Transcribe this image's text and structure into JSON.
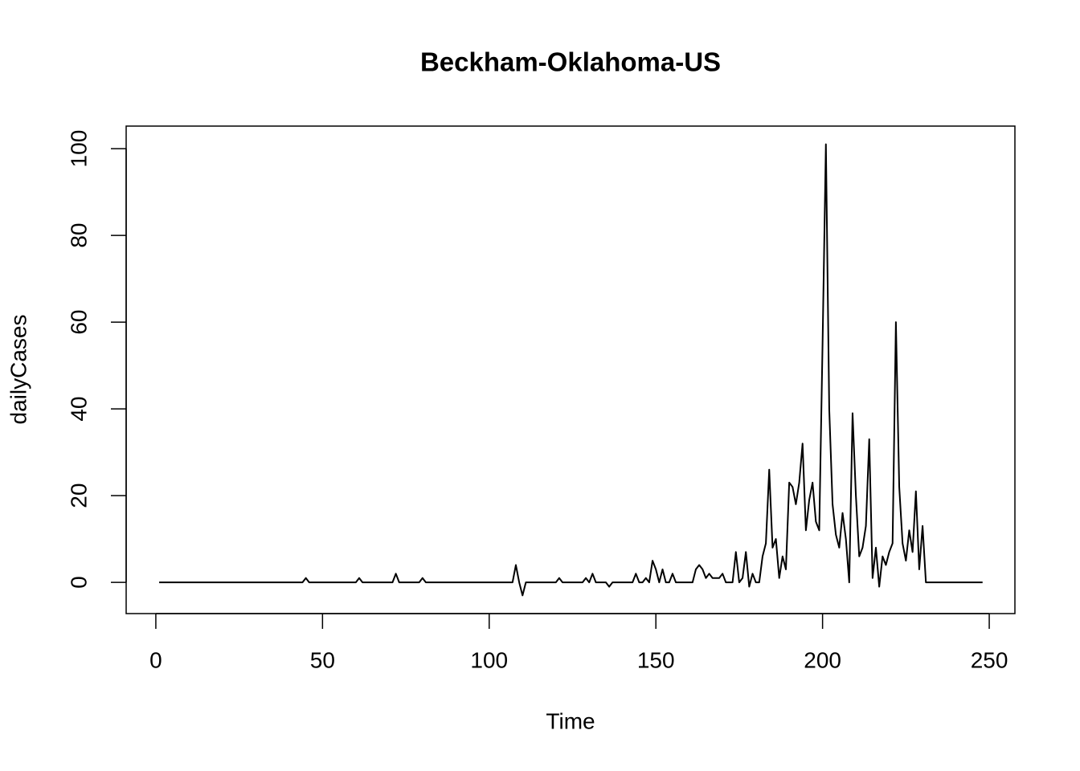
{
  "chart_data": {
    "type": "line",
    "title": "Beckham-Oklahoma-US",
    "x_label": "Time",
    "y_label": "dailyCases",
    "color": "#000000",
    "x": [
      1,
      2,
      3,
      4,
      5,
      6,
      7,
      8,
      9,
      10,
      11,
      12,
      13,
      14,
      15,
      16,
      17,
      18,
      19,
      20,
      21,
      22,
      23,
      24,
      25,
      26,
      27,
      28,
      29,
      30,
      31,
      32,
      33,
      34,
      35,
      36,
      37,
      38,
      39,
      40,
      41,
      42,
      43,
      44,
      45,
      46,
      47,
      48,
      49,
      50,
      51,
      52,
      53,
      54,
      55,
      56,
      57,
      58,
      59,
      60,
      61,
      62,
      63,
      64,
      65,
      66,
      67,
      68,
      69,
      70,
      71,
      72,
      73,
      74,
      75,
      76,
      77,
      78,
      79,
      80,
      81,
      82,
      83,
      84,
      85,
      86,
      87,
      88,
      89,
      90,
      91,
      92,
      93,
      94,
      95,
      96,
      97,
      98,
      99,
      100,
      101,
      102,
      103,
      104,
      105,
      106,
      107,
      108,
      109,
      110,
      111,
      112,
      113,
      114,
      115,
      116,
      117,
      118,
      119,
      120,
      121,
      122,
      123,
      124,
      125,
      126,
      127,
      128,
      129,
      130,
      131,
      132,
      133,
      134,
      135,
      136,
      137,
      138,
      139,
      140,
      141,
      142,
      143,
      144,
      145,
      146,
      147,
      148,
      149,
      150,
      151,
      152,
      153,
      154,
      155,
      156,
      157,
      158,
      159,
      160,
      161,
      162,
      163,
      164,
      165,
      166,
      167,
      168,
      169,
      170,
      171,
      172,
      173,
      174,
      175,
      176,
      177,
      178,
      179,
      180,
      181,
      182,
      183,
      184,
      185,
      186,
      187,
      188,
      189,
      190,
      191,
      192,
      193,
      194,
      195,
      196,
      197,
      198,
      199,
      200,
      201,
      202,
      203,
      204,
      205,
      206,
      207,
      208,
      209,
      210,
      211,
      212,
      213,
      214,
      215,
      216,
      217,
      218,
      219,
      220,
      221,
      222,
      223,
      224,
      225,
      226,
      227,
      228,
      229,
      230,
      231,
      232,
      233,
      234,
      235,
      236,
      237,
      238,
      239,
      240,
      241,
      242,
      243,
      244,
      245,
      246,
      247,
      248
    ],
    "values": [
      0,
      0,
      0,
      0,
      0,
      0,
      0,
      0,
      0,
      0,
      0,
      0,
      0,
      0,
      0,
      0,
      0,
      0,
      0,
      0,
      0,
      0,
      0,
      0,
      0,
      0,
      0,
      0,
      0,
      0,
      0,
      0,
      0,
      0,
      0,
      0,
      0,
      0,
      0,
      0,
      0,
      0,
      0,
      0,
      1,
      0,
      0,
      0,
      0,
      0,
      0,
      0,
      0,
      0,
      0,
      0,
      0,
      0,
      0,
      0,
      1,
      0,
      0,
      0,
      0,
      0,
      0,
      0,
      0,
      0,
      0,
      2,
      0,
      0,
      0,
      0,
      0,
      0,
      0,
      1,
      0,
      0,
      0,
      0,
      0,
      0,
      0,
      0,
      0,
      0,
      0,
      0,
      0,
      0,
      0,
      0,
      0,
      0,
      0,
      0,
      0,
      0,
      0,
      0,
      0,
      0,
      0,
      4,
      0,
      -3,
      0,
      0,
      0,
      0,
      0,
      0,
      0,
      0,
      0,
      0,
      1,
      0,
      0,
      0,
      0,
      0,
      0,
      0,
      1,
      0,
      2,
      0,
      0,
      0,
      0,
      -1,
      0,
      0,
      0,
      0,
      0,
      0,
      0,
      2,
      0,
      0,
      1,
      0,
      5,
      3,
      0,
      3,
      0,
      0,
      2,
      0,
      0,
      0,
      0,
      0,
      0,
      3,
      4,
      3,
      1,
      2,
      1,
      1,
      1,
      2,
      0,
      0,
      0,
      7,
      0,
      1,
      7,
      -1,
      2,
      0,
      0,
      6,
      9,
      26,
      8,
      10,
      1,
      6,
      3,
      23,
      22,
      18,
      23,
      32,
      12,
      19,
      23,
      14,
      12,
      55,
      101,
      40,
      18,
      11,
      8,
      16,
      10,
      0,
      39,
      20,
      6,
      8,
      13,
      33,
      1,
      8,
      -1,
      6,
      4,
      7,
      9,
      60,
      22,
      9,
      5,
      12,
      7,
      21,
      3,
      13,
      0,
      0,
      0,
      0,
      0,
      0,
      0,
      0,
      0,
      0,
      0,
      0,
      0,
      0,
      0,
      0,
      0,
      0
    ],
    "xlim": [
      -8.9,
      257.7
    ],
    "ylim": [
      -7.2,
      105.2
    ],
    "xticks": [
      0,
      50,
      100,
      150,
      200,
      250
    ],
    "yticks": [
      0,
      20,
      40,
      60,
      80,
      100
    ]
  }
}
